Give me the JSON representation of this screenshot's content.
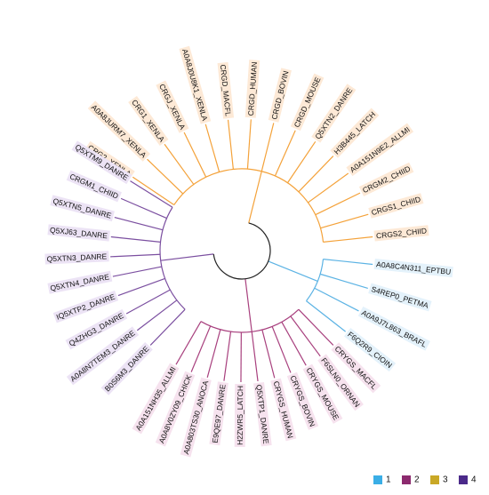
{
  "tree": {
    "clades": [
      {
        "leaves": [
          "CRG2_XENLA",
          "A0A8JURM7_XENLA",
          "CRG1_XENLA",
          "CRGJ_XENLA",
          "A0A8J0U8K1_XENLA",
          "CRGD_MACFL",
          "CRGD_HUMAN",
          "CRGD_BOVIN",
          "CRGD_MOUSE",
          "Q5XTN2_DANRE",
          "H3B445_LATCH",
          "A0A151N9E2_ALLMI",
          "CRGM2_CHIID",
          "CRGS1_CHIID",
          "CRGS2_CHIID"
        ]
      },
      {
        "leaves": [
          "A0A8C4N311_EPTBU",
          "S4REP0_PETMA",
          "A0A9J7L863_BRAFL",
          "F6Q2R9_CIOIN"
        ]
      },
      {
        "leaves": [
          "CRYGS_MACFL",
          "F6SLN0_ORNAN",
          "CRYGS_MOUSE",
          "CRYGS_BOVIN",
          "CRYGS_HUMAN",
          "Q5XTP1_DANRE",
          "H2ZWR5_LATCH",
          "E9QE97_DANRE",
          "A0A803TS30_ANOCA",
          "A0A8V0ZY09_CHICK",
          "A0A151NH35_ALLMI"
        ]
      },
      {
        "leaves": [
          "B0S6M3_DANRE",
          "A0A8N7TEM3_DANRE",
          "Q4ZHG3_DANRE",
          "IQ5XTP2_DANRE",
          "Q5XTN4_DANRE",
          "Q5XTN3_DANRE",
          "Q5XJ63_DANRE",
          "Q5XTN5_DANRE",
          "CRGM1_CHIID",
          "Q5XTM9_DANRE"
        ]
      }
    ]
  },
  "legend": {
    "items": [
      "1",
      "2",
      "3",
      "4"
    ]
  }
}
